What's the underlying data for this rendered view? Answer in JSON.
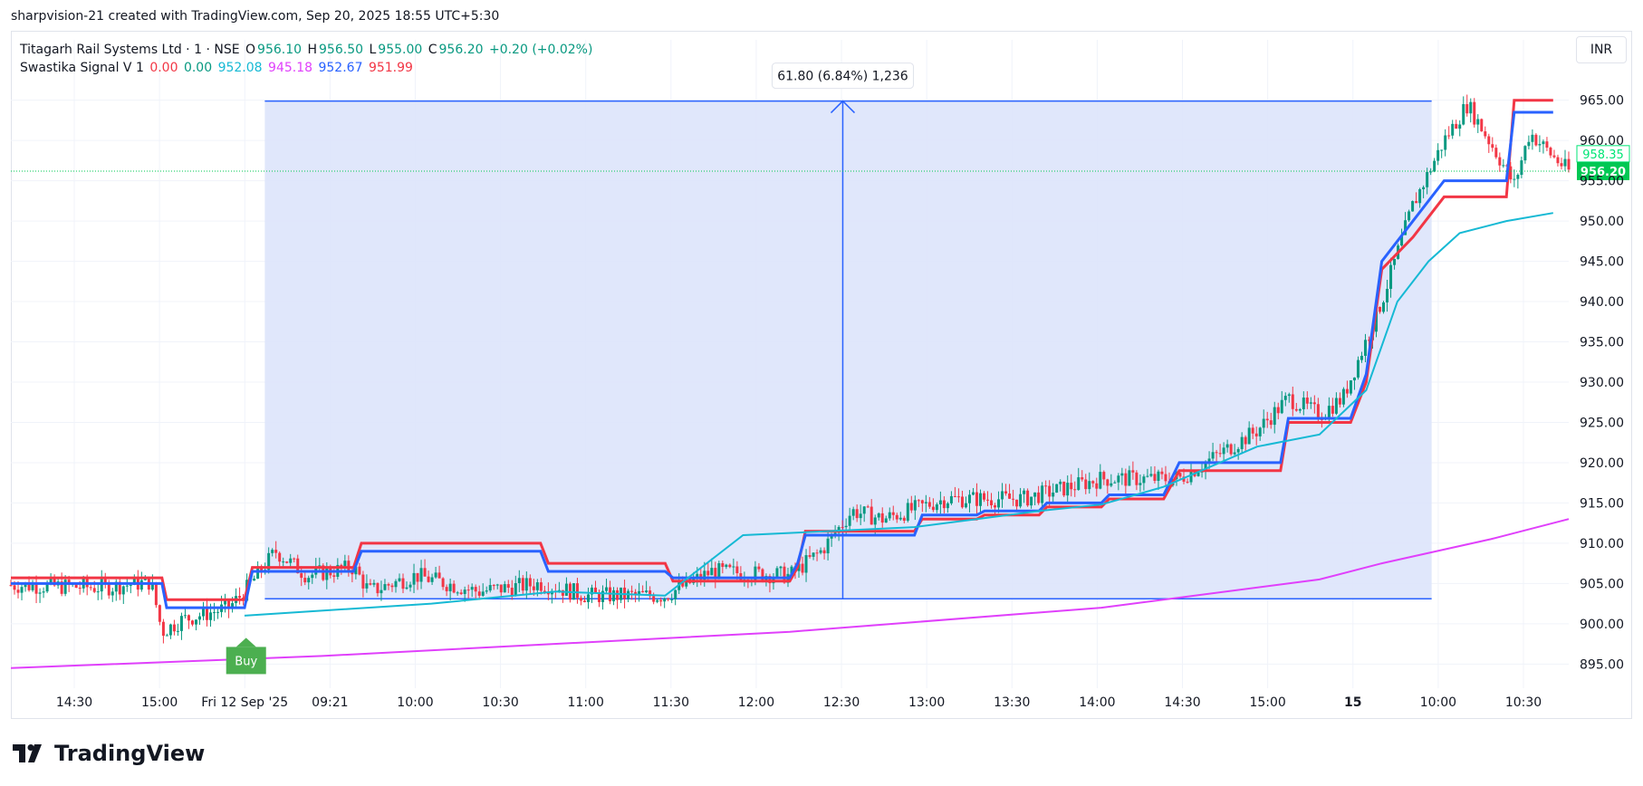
{
  "header": {
    "attribution": "sharpvision-21 created with TradingView.com, Sep 20, 2025 18:55 UTC+5:30"
  },
  "legend": {
    "symbol": "Titagarh Rail Systems Ltd · 1 · NSE",
    "open_label": "O",
    "open": "956.10",
    "high_label": "H",
    "high": "956.50",
    "low_label": "L",
    "low": "955.00",
    "close_label": "C",
    "close": "956.20",
    "change": "+0.20 (+0.02%)",
    "indicator_name": "Swastika Signal V 1",
    "ind_v1": "0.00",
    "ind_v2": "0.00",
    "ind_v3": "952.08",
    "ind_v4": "945.18",
    "ind_v5": "952.67",
    "ind_v6": "951.99"
  },
  "currency": "INR",
  "measure_label": "61.80 (6.84%) 1,236",
  "buy_label": "Buy",
  "price_tags": {
    "upper": "958.35",
    "last": "956.20"
  },
  "brand": "TradingView",
  "colors": {
    "up": "#089981",
    "down": "#f23645",
    "red_line": "#f23645",
    "blue_line": "#2962ff",
    "cyan_line": "#16b9d4",
    "magenta_line": "#e040fb",
    "measure_fill": "#dde4fb",
    "measure_line": "#2962ff",
    "buy": "#4caf50",
    "last_price": "#00c853",
    "upper_tag": "#00e676"
  },
  "chart_data": {
    "type": "candlestick",
    "title": "Titagarh Rail Systems Ltd · 1 · NSE",
    "y_axis": {
      "ticks": [
        965,
        960,
        955,
        950,
        945,
        940,
        935,
        930,
        925,
        920,
        915,
        910,
        905,
        900,
        895
      ],
      "ylim": [
        892,
        968
      ]
    },
    "x_axis": {
      "ticks": [
        "14:30",
        "15:00",
        "Fri 12 Sep '25",
        "09:21",
        "10:00",
        "10:30",
        "11:00",
        "11:30",
        "12:00",
        "12:30",
        "13:00",
        "13:30",
        "14:00",
        "14:30",
        "15:00",
        "15",
        "10:00",
        "10:30"
      ]
    },
    "price_path": [
      [
        0,
        904.8
      ],
      [
        0.06,
        904.5
      ],
      [
        0.09,
        905.2
      ],
      [
        0.097,
        899
      ],
      [
        0.11,
        900.5
      ],
      [
        0.14,
        902
      ],
      [
        0.15,
        904
      ],
      [
        0.17,
        909
      ],
      [
        0.19,
        906
      ],
      [
        0.22,
        907
      ],
      [
        0.23,
        904
      ],
      [
        0.26,
        906
      ],
      [
        0.3,
        904
      ],
      [
        0.34,
        905
      ],
      [
        0.37,
        903.5
      ],
      [
        0.42,
        903.5
      ],
      [
        0.45,
        906.5
      ],
      [
        0.5,
        906
      ],
      [
        0.52,
        909
      ],
      [
        0.54,
        914
      ],
      [
        0.56,
        913
      ],
      [
        0.6,
        915.5
      ],
      [
        0.65,
        915.5
      ],
      [
        0.7,
        918
      ],
      [
        0.75,
        918
      ],
      [
        0.8,
        924
      ],
      [
        0.82,
        928
      ],
      [
        0.84,
        926
      ],
      [
        0.855,
        928
      ],
      [
        0.88,
        940
      ],
      [
        0.9,
        952
      ],
      [
        0.92,
        960
      ],
      [
        0.935,
        964.5
      ],
      [
        0.955,
        958
      ],
      [
        0.965,
        954.5
      ],
      [
        0.975,
        961
      ],
      [
        0.99,
        958
      ],
      [
        1.0,
        956.2
      ]
    ],
    "series": [
      {
        "name": "Swastika Signal V 1 (red)",
        "points": [
          [
            0,
            905.7
          ],
          [
            0.097,
            905.7
          ],
          [
            0.1,
            903
          ],
          [
            0.15,
            903
          ],
          [
            0.155,
            907
          ],
          [
            0.22,
            907
          ],
          [
            0.225,
            910
          ],
          [
            0.34,
            910
          ],
          [
            0.345,
            907.5
          ],
          [
            0.42,
            907.5
          ],
          [
            0.425,
            905.3
          ],
          [
            0.5,
            905.3
          ],
          [
            0.505,
            907
          ],
          [
            0.51,
            911.5
          ],
          [
            0.58,
            911.5
          ],
          [
            0.585,
            913
          ],
          [
            0.62,
            913
          ],
          [
            0.625,
            913.5
          ],
          [
            0.66,
            913.5
          ],
          [
            0.665,
            914.5
          ],
          [
            0.7,
            914.5
          ],
          [
            0.705,
            915.5
          ],
          [
            0.74,
            915.5
          ],
          [
            0.75,
            919
          ],
          [
            0.815,
            919
          ],
          [
            0.82,
            925
          ],
          [
            0.82,
            925
          ],
          [
            0.86,
            925
          ],
          [
            0.87,
            930
          ],
          [
            0.88,
            944
          ],
          [
            0.89,
            946
          ],
          [
            0.9,
            948
          ],
          [
            0.92,
            953
          ],
          [
            0.96,
            953
          ],
          [
            0.965,
            965
          ],
          [
            0.99,
            965
          ]
        ]
      },
      {
        "name": "Swastika Signal V 1 (blue)",
        "points": [
          [
            0,
            905
          ],
          [
            0.097,
            905
          ],
          [
            0.1,
            902
          ],
          [
            0.15,
            902
          ],
          [
            0.155,
            906.5
          ],
          [
            0.22,
            906.5
          ],
          [
            0.225,
            909
          ],
          [
            0.34,
            909
          ],
          [
            0.345,
            906.5
          ],
          [
            0.42,
            906.5
          ],
          [
            0.425,
            905.7
          ],
          [
            0.5,
            905.7
          ],
          [
            0.505,
            907.5
          ],
          [
            0.51,
            911
          ],
          [
            0.58,
            911
          ],
          [
            0.585,
            913.5
          ],
          [
            0.62,
            913.5
          ],
          [
            0.625,
            914
          ],
          [
            0.66,
            914
          ],
          [
            0.665,
            915
          ],
          [
            0.7,
            915
          ],
          [
            0.705,
            916
          ],
          [
            0.74,
            916
          ],
          [
            0.75,
            920
          ],
          [
            0.815,
            920
          ],
          [
            0.82,
            925.5
          ],
          [
            0.86,
            925.5
          ],
          [
            0.87,
            931
          ],
          [
            0.88,
            945
          ],
          [
            0.89,
            947.5
          ],
          [
            0.9,
            950
          ],
          [
            0.92,
            955
          ],
          [
            0.96,
            955
          ],
          [
            0.965,
            963.5
          ],
          [
            0.99,
            963.5
          ]
        ]
      },
      {
        "name": "Swastika Signal V 1 (cyan)",
        "points": [
          [
            0.15,
            901
          ],
          [
            0.27,
            902.5
          ],
          [
            0.35,
            904
          ],
          [
            0.42,
            903.5
          ],
          [
            0.47,
            911
          ],
          [
            0.58,
            912
          ],
          [
            0.62,
            913
          ],
          [
            0.66,
            914
          ],
          [
            0.7,
            914.8
          ],
          [
            0.74,
            917
          ],
          [
            0.8,
            922
          ],
          [
            0.84,
            923.5
          ],
          [
            0.87,
            929
          ],
          [
            0.89,
            940
          ],
          [
            0.91,
            945
          ],
          [
            0.93,
            948.5
          ],
          [
            0.96,
            950
          ],
          [
            0.99,
            951
          ]
        ]
      },
      {
        "name": "Swastika Signal V 1 (magenta)",
        "points": [
          [
            0,
            894.5
          ],
          [
            0.2,
            896
          ],
          [
            0.5,
            899
          ],
          [
            0.7,
            902
          ],
          [
            0.84,
            905.5
          ],
          [
            0.88,
            907.5
          ],
          [
            0.95,
            910.5
          ],
          [
            1.0,
            913
          ]
        ]
      }
    ],
    "measurement": {
      "from_price": 903.1,
      "to_price": 964.9,
      "change": 61.8,
      "change_pct": 6.84,
      "bars": 1236,
      "x_start": 0.163,
      "x_end": 0.912,
      "x_arrow": 0.534
    },
    "signal": {
      "label": "Buy",
      "x": 0.151,
      "price": 896
    },
    "last_price": 956.2,
    "upper_price": 958.35,
    "grid": true
  }
}
